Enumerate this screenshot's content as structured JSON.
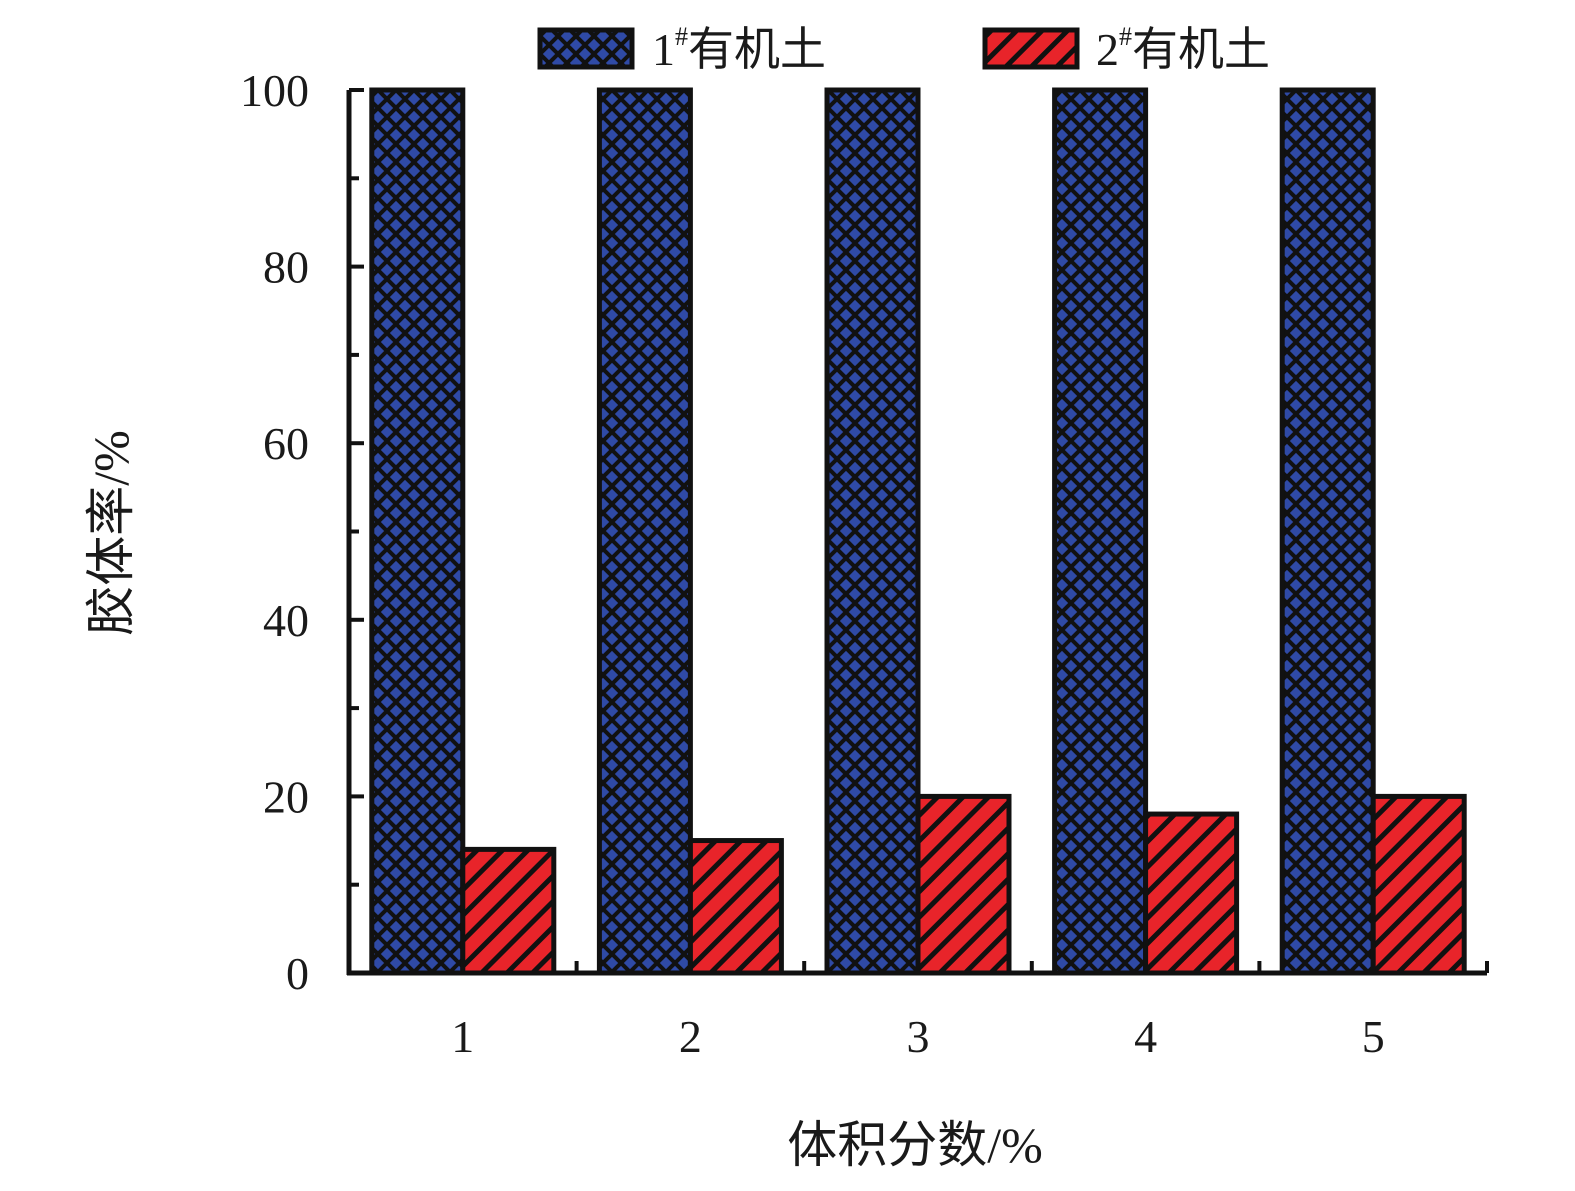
{
  "chart_data": {
    "type": "bar",
    "categories": [
      "1",
      "2",
      "3",
      "4",
      "5"
    ],
    "series": [
      {
        "name": "1#有机土",
        "legend_main": "1",
        "legend_sup": "#",
        "legend_rest": "有机土",
        "values": [
          100,
          100,
          100,
          100,
          100
        ],
        "color": "#2f4aa6",
        "pattern": "crosshatch"
      },
      {
        "name": "2#有机土",
        "legend_main": "2",
        "legend_sup": "#",
        "legend_rest": "有机土",
        "values": [
          14,
          15,
          20,
          18,
          20
        ],
        "color": "#e8242a",
        "pattern": "diagonal"
      }
    ],
    "xlabel": "体积分数/%",
    "ylabel": "胶体率/%",
    "ylim": [
      0,
      100
    ],
    "yticks": [
      0,
      20,
      40,
      60,
      80,
      100
    ],
    "grid": false,
    "legend_position": "top"
  }
}
